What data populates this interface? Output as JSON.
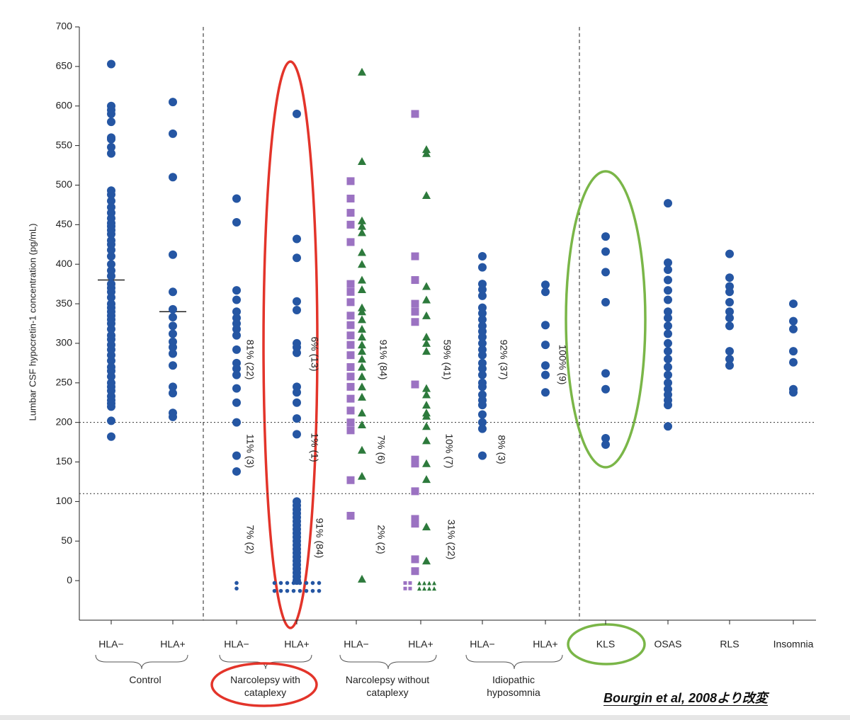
{
  "chart_data": {
    "type": "strip",
    "y_label": "Lumbar CSF hypocretin-1 concentration (pg/mL)",
    "categories": [
      "HLA−",
      "HLA+",
      "HLA−",
      "HLA+",
      "HLA−",
      "HLA+",
      "HLA−",
      "HLA+",
      "KLS",
      "OSAS",
      "RLS",
      "Insomnia"
    ],
    "groups": [
      "Control",
      "Narcolepsy with cataplexy",
      "Narcolepsy without cataplexy",
      "Idiopathic hyposomnia"
    ],
    "ylim": [
      -50,
      700
    ],
    "yticks": [
      0,
      50,
      100,
      150,
      200,
      250,
      300,
      350,
      400,
      450,
      500,
      550,
      600,
      650,
      700
    ],
    "hlines": [
      200,
      110
    ],
    "medians": [
      380,
      340,
      null,
      null,
      null,
      null,
      null,
      null,
      null,
      null,
      null,
      null
    ],
    "series": [
      {
        "marker": "circle",
        "color": "#2556a3",
        "values": [
          [
            653,
            600,
            595,
            590,
            580,
            560,
            558,
            548,
            540,
            493,
            488,
            480,
            472,
            465,
            458,
            452,
            448,
            443,
            438,
            430,
            425,
            418,
            410,
            400,
            392,
            385,
            375,
            370,
            365,
            358,
            350,
            345,
            340,
            335,
            330,
            325,
            318,
            310,
            305,
            298,
            292,
            285,
            278,
            270,
            265,
            258,
            250,
            245,
            240,
            233,
            228,
            224,
            220,
            202,
            182
          ],
          [
            605,
            565,
            510,
            412,
            365,
            343,
            333,
            322,
            312,
            302,
            295,
            287,
            272,
            245,
            237,
            212,
            207
          ],
          [
            483,
            453,
            367,
            355,
            340,
            332,
            325,
            318,
            310,
            292,
            275,
            268,
            260,
            243,
            225,
            200,
            158,
            138
          ],
          [
            590,
            432,
            408,
            353,
            342,
            300,
            295,
            288,
            245,
            238,
            225,
            205,
            185,
            100,
            95,
            90,
            85,
            80,
            75,
            70,
            65,
            60,
            55,
            50,
            45,
            40,
            35,
            30,
            25,
            20,
            15,
            10,
            5,
            0
          ],
          [],
          [],
          [
            410,
            396,
            375,
            368,
            360,
            345,
            338,
            330,
            322,
            315,
            308,
            300,
            292,
            285,
            275,
            268,
            260,
            250,
            245,
            235,
            228,
            222,
            210,
            200,
            192,
            158
          ],
          [
            374,
            365,
            323,
            298,
            272,
            260,
            238
          ],
          [
            435,
            416,
            390,
            352,
            262,
            242,
            180,
            172
          ],
          [
            477,
            402,
            393,
            380,
            367,
            355,
            340,
            332,
            322,
            312,
            300,
            290,
            280,
            270,
            260,
            250,
            242,
            235,
            228,
            222,
            195
          ],
          [
            413,
            383,
            372,
            365,
            352,
            340,
            332,
            322,
            290,
            280,
            272
          ],
          [
            350,
            328,
            318,
            290,
            276,
            242,
            238
          ]
        ]
      },
      {
        "marker": "square",
        "color": "#9b72c2",
        "values": [
          [],
          [],
          [],
          [],
          [
            505,
            483,
            465,
            450,
            428,
            375,
            365,
            352,
            335,
            323,
            310,
            298,
            285,
            270,
            258,
            245,
            230,
            215,
            200,
            190,
            127,
            82
          ],
          [
            590,
            410,
            380,
            350,
            340,
            327,
            248,
            153,
            148,
            113,
            78,
            72,
            27,
            12
          ],
          [],
          [],
          [],
          [],
          [],
          []
        ]
      },
      {
        "marker": "triangle",
        "color": "#2d7a3c",
        "values": [
          [],
          [],
          [],
          [],
          [
            643,
            530,
            455,
            448,
            440,
            415,
            400,
            380,
            368,
            345,
            340,
            330,
            318,
            308,
            298,
            290,
            280,
            270,
            258,
            245,
            232,
            212,
            197,
            165,
            132,
            2
          ],
          [
            545,
            540,
            487,
            372,
            355,
            335,
            308,
            300,
            290,
            243,
            235,
            222,
            212,
            208,
            195,
            177,
            148,
            128,
            68,
            25
          ],
          [],
          [],
          [],
          [],
          [],
          []
        ]
      },
      {
        "marker": "dot",
        "color": "#2556a3",
        "values": [
          [],
          [],
          [
            -3,
            -10
          ],
          [
            -3,
            -3,
            -3,
            -3,
            -3,
            -3,
            -3,
            -3,
            -13,
            -13,
            -13,
            -13,
            -13,
            -13,
            -13,
            -13
          ],
          [],
          [],
          [],
          [],
          [],
          [],
          [],
          []
        ]
      },
      {
        "marker": "dot-square",
        "color": "#9b72c2",
        "values": [
          [],
          [],
          [],
          [],
          [],
          [
            -3,
            -3,
            -10,
            -10
          ],
          [],
          [],
          [],
          [],
          [],
          []
        ]
      },
      {
        "marker": "dot-triangle",
        "color": "#2d7a3c",
        "values": [
          [],
          [],
          [],
          [],
          [],
          [
            -3,
            -3,
            -3,
            -3,
            -10,
            -10,
            -10,
            -10
          ],
          [],
          [],
          [],
          [],
          [],
          []
        ]
      }
    ],
    "annotations": [
      "81% (22)",
      "11% (3)",
      "7% (2)",
      "6% (13)",
      "1% (1)",
      "91% (84)",
      "91% (84)",
      "7% (6)",
      "2% (2)",
      "59% (41)",
      "10% (7)",
      "31% (22)",
      "92% (37)",
      "8% (3)",
      "100% (9)"
    ],
    "source": "Bourgin et al, 2008より改変"
  }
}
